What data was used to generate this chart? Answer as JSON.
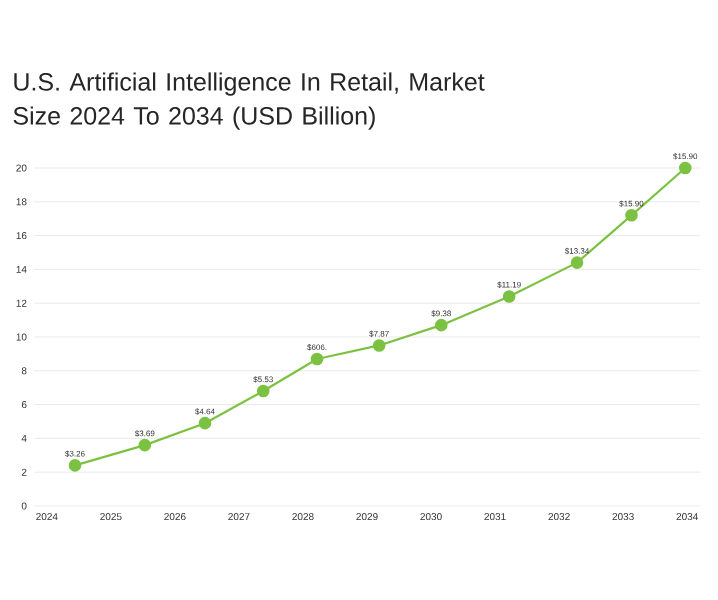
{
  "chart_data": {
    "type": "line",
    "title": "U.S. Artificial Intelligence In Retail, Market Size 2024 To 2034 (USD Billion)",
    "x": [
      2024.44,
      2025.53,
      2026.47,
      2027.38,
      2028.22,
      2029.19,
      2030.16,
      2031.22,
      2032.28,
      2033.13,
      2033.97
    ],
    "series": [
      {
        "color": "#7cc242",
        "values": [
          2.4,
          3.6,
          4.9,
          6.8,
          8.7,
          9.5,
          10.7,
          12.4,
          14.4,
          17.2,
          20.0
        ]
      }
    ],
    "annotations": [
      {
        "text": "$3.26",
        "x": 2024.44,
        "y": 2.4
      },
      {
        "text": "$3.69",
        "x": 2025.53,
        "y": 3.6
      },
      {
        "text": "$4.64",
        "x": 2026.47,
        "y": 4.9
      },
      {
        "text": "$5.53",
        "x": 2027.38,
        "y": 6.8
      },
      {
        "text": "$606.",
        "x": 2028.22,
        "y": 8.7
      },
      {
        "text": "$7.87",
        "x": 2029.19,
        "y": 9.5
      },
      {
        "text": "$9.38",
        "x": 2030.16,
        "y": 10.7
      },
      {
        "text": "$11.19",
        "x": 2031.22,
        "y": 12.4
      },
      {
        "text": "$13.34",
        "x": 2032.28,
        "y": 14.4
      },
      {
        "text": "$15.90",
        "x": 2033.13,
        "y": 17.2
      },
      {
        "text": "$15.90",
        "x": 2033.97,
        "y": 20.0
      }
    ],
    "xlim": [
      2023.8,
      2034.2
    ],
    "xticks": [
      2024,
      2025,
      2026,
      2027,
      2028,
      2029,
      2030,
      2031,
      2032,
      2033,
      2034
    ],
    "ylim": [
      0,
      20
    ],
    "yticks": [
      0,
      2,
      4,
      6,
      8,
      10,
      12,
      14,
      16,
      18,
      20
    ],
    "grid": "y",
    "marker": "circle",
    "line_style": "solid"
  }
}
